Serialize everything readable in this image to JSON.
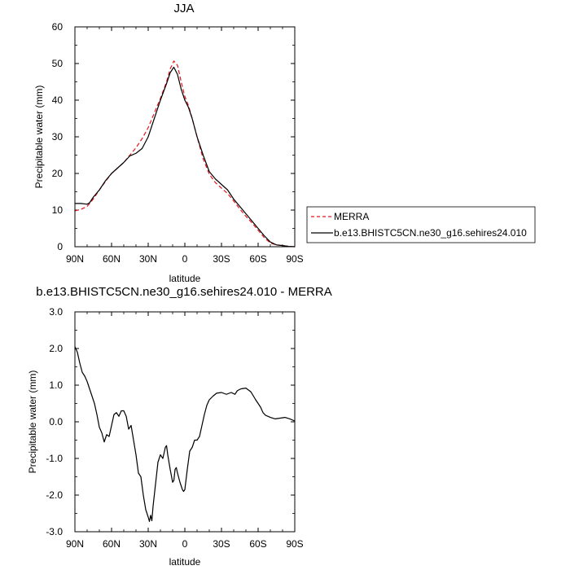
{
  "chart_data": [
    {
      "type": "line",
      "title": "JJA",
      "xlabel": "latitude",
      "ylabel": "Precipitable water (mm)",
      "xlim": [
        90,
        -90
      ],
      "ylim": [
        0,
        60
      ],
      "xticks": [
        90,
        60,
        30,
        0,
        -30,
        -60,
        -90
      ],
      "xtick_labels": [
        "90N",
        "60N",
        "30N",
        "0",
        "30S",
        "60S",
        "90S"
      ],
      "yticks": [
        0,
        10,
        20,
        30,
        40,
        50,
        60
      ],
      "ytick_labels": [
        "0",
        "10",
        "20",
        "30",
        "40",
        "50",
        "60"
      ],
      "grid": false,
      "legend": "right",
      "series": [
        {
          "name": "MERRA",
          "color": "#e8141c",
          "style": "dashed",
          "points": [
            [
              90,
              9.8
            ],
            [
              85,
              10.2
            ],
            [
              80,
              11
            ],
            [
              75,
              13
            ],
            [
              70,
              15.5
            ],
            [
              65,
              17.8
            ],
            [
              60,
              20
            ],
            [
              55,
              21.5
            ],
            [
              50,
              23
            ],
            [
              45,
              25
            ],
            [
              40,
              27
            ],
            [
              35,
              29.5
            ],
            [
              30,
              32.5
            ],
            [
              25,
              36.5
            ],
            [
              20,
              40.5
            ],
            [
              15,
              45
            ],
            [
              12,
              48.5
            ],
            [
              9,
              50.7
            ],
            [
              6,
              49.5
            ],
            [
              3,
              45
            ],
            [
              0,
              41
            ],
            [
              -3,
              38.5
            ],
            [
              -6,
              35
            ],
            [
              -10,
              30
            ],
            [
              -15,
              24
            ],
            [
              -20,
              19.8
            ],
            [
              -25,
              17.5
            ],
            [
              -30,
              16
            ],
            [
              -35,
              14.5
            ],
            [
              -40,
              12.5
            ],
            [
              -45,
              10.3
            ],
            [
              -50,
              8.3
            ],
            [
              -55,
              6.5
            ],
            [
              -60,
              4.5
            ],
            [
              -65,
              2.5
            ],
            [
              -70,
              1
            ],
            [
              -75,
              0.5
            ],
            [
              -80,
              0.3
            ],
            [
              -85,
              0.1
            ],
            [
              -90,
              0
            ]
          ]
        },
        {
          "name": "b.e13.BHISTC5CN.ne30_g16.sehires24.010",
          "color": "#000000",
          "style": "solid",
          "points": [
            [
              90,
              11.8
            ],
            [
              85,
              11.8
            ],
            [
              80,
              11.6
            ],
            [
              78,
              12
            ],
            [
              75,
              13.5
            ],
            [
              70,
              15.5
            ],
            [
              65,
              18
            ],
            [
              60,
              20
            ],
            [
              55,
              21.5
            ],
            [
              50,
              23
            ],
            [
              45,
              24.8
            ],
            [
              40,
              25.5
            ],
            [
              35,
              26.8
            ],
            [
              30,
              30
            ],
            [
              25,
              35
            ],
            [
              20,
              40
            ],
            [
              15,
              44.5
            ],
            [
              12,
              47.5
            ],
            [
              9,
              49
            ],
            [
              6,
              47
            ],
            [
              3,
              43
            ],
            [
              0,
              40
            ],
            [
              -3,
              38
            ],
            [
              -6,
              35
            ],
            [
              -10,
              30
            ],
            [
              -15,
              25
            ],
            [
              -20,
              20.5
            ],
            [
              -25,
              18.5
            ],
            [
              -30,
              17
            ],
            [
              -35,
              15.5
            ],
            [
              -40,
              13
            ],
            [
              -45,
              11
            ],
            [
              -50,
              9
            ],
            [
              -55,
              7
            ],
            [
              -60,
              5
            ],
            [
              -65,
              3
            ],
            [
              -70,
              1.3
            ],
            [
              -75,
              0.5
            ],
            [
              -80,
              0.3
            ],
            [
              -85,
              0.1
            ],
            [
              -90,
              0
            ]
          ]
        }
      ]
    },
    {
      "type": "line",
      "title": "b.e13.BHISTC5CN.ne30_g16.sehires24.010 - MERRA",
      "xlabel": "latitude",
      "ylabel": "Precipitable water (mm)",
      "xlim": [
        90,
        -90
      ],
      "ylim": [
        -3,
        3
      ],
      "xticks": [
        90,
        60,
        30,
        0,
        -30,
        -60,
        -90
      ],
      "xtick_labels": [
        "90N",
        "60N",
        "30N",
        "0",
        "30S",
        "60S",
        "90S"
      ],
      "yticks": [
        -3,
        -2,
        -1,
        0,
        1,
        2,
        3
      ],
      "ytick_labels": [
        "-3.0",
        "-2.0",
        "-1.0",
        "0.0",
        "1.0",
        "2.0",
        "3.0"
      ],
      "grid": false,
      "series": [
        {
          "color": "#000000",
          "style": "solid",
          "points": [
            [
              90,
              2.05
            ],
            [
              88,
              1.9
            ],
            [
              86,
              1.6
            ],
            [
              84,
              1.35
            ],
            [
              82,
              1.25
            ],
            [
              80,
              1.1
            ],
            [
              78,
              0.9
            ],
            [
              76,
              0.7
            ],
            [
              74,
              0.5
            ],
            [
              72,
              0.2
            ],
            [
              70,
              -0.15
            ],
            [
              68,
              -0.3
            ],
            [
              66,
              -0.55
            ],
            [
              64,
              -0.35
            ],
            [
              62,
              -0.4
            ],
            [
              60,
              -0.1
            ],
            [
              58,
              0.2
            ],
            [
              56,
              0.25
            ],
            [
              54,
              0.15
            ],
            [
              52,
              0.3
            ],
            [
              50,
              0.3
            ],
            [
              48,
              0.15
            ],
            [
              46,
              -0.2
            ],
            [
              44,
              -0.1
            ],
            [
              42,
              -0.5
            ],
            [
              40,
              -0.9
            ],
            [
              38,
              -1.4
            ],
            [
              36,
              -1.5
            ],
            [
              34,
              -2
            ],
            [
              32,
              -2.4
            ],
            [
              30,
              -2.6
            ],
            [
              29,
              -2.72
            ],
            [
              28,
              -2.55
            ],
            [
              27,
              -2.7
            ],
            [
              26,
              -2.3
            ],
            [
              24,
              -1.7
            ],
            [
              22,
              -1.1
            ],
            [
              20,
              -0.9
            ],
            [
              18,
              -1
            ],
            [
              16,
              -0.7
            ],
            [
              15,
              -0.65
            ],
            [
              14,
              -0.9
            ],
            [
              12,
              -1.3
            ],
            [
              10,
              -1.65
            ],
            [
              9,
              -1.6
            ],
            [
              8,
              -1.3
            ],
            [
              7,
              -1.25
            ],
            [
              6,
              -1.4
            ],
            [
              4,
              -1.65
            ],
            [
              2,
              -1.85
            ],
            [
              1,
              -1.9
            ],
            [
              0,
              -1.85
            ],
            [
              -2,
              -1.3
            ],
            [
              -4,
              -0.8
            ],
            [
              -6,
              -0.7
            ],
            [
              -8,
              -0.5
            ],
            [
              -10,
              -0.5
            ],
            [
              -12,
              -0.4
            ],
            [
              -14,
              -0.1
            ],
            [
              -16,
              0.2
            ],
            [
              -18,
              0.45
            ],
            [
              -20,
              0.6
            ],
            [
              -23,
              0.7
            ],
            [
              -26,
              0.78
            ],
            [
              -30,
              0.8
            ],
            [
              -34,
              0.75
            ],
            [
              -38,
              0.8
            ],
            [
              -41,
              0.75
            ],
            [
              -43,
              0.85
            ],
            [
              -46,
              0.9
            ],
            [
              -50,
              0.92
            ],
            [
              -54,
              0.82
            ],
            [
              -58,
              0.6
            ],
            [
              -62,
              0.4
            ],
            [
              -64,
              0.25
            ],
            [
              -66,
              0.18
            ],
            [
              -70,
              0.12
            ],
            [
              -74,
              0.08
            ],
            [
              -78,
              0.1
            ],
            [
              -82,
              0.12
            ],
            [
              -86,
              0.08
            ],
            [
              -88,
              0.05
            ],
            [
              -90,
              0.02
            ]
          ]
        }
      ]
    }
  ]
}
